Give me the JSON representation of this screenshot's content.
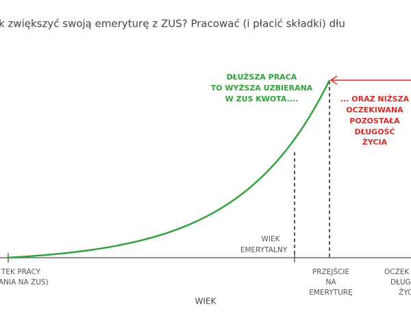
{
  "title": "k zwiększyć swoją emeryturę z ZUS? Pracować (i płacić składki) dłu",
  "green_note": [
    "DŁUŻSZA PRACA",
    "TO WYŻSZA UZBIERANA",
    "W ZUS KWOTA...."
  ],
  "red_note": [
    "... ORAZ NIŻSZA",
    "OCZEKIWANA",
    "POZOSTAŁA",
    "DŁUGOŚĆ",
    "ŻYCIA"
  ],
  "retirement_age": [
    "WIEK",
    "EMERYTALNY"
  ],
  "start_label": [
    "TEK PRACY",
    "ANIA NA ZUS)"
  ],
  "transition_label": [
    "PRZEJŚCIE",
    "NA",
    "EMERYTURĘ"
  ],
  "expected_label": [
    "OCZEK",
    "DŁUG",
    "ŻYC"
  ],
  "axis_label": "WIEK"
}
